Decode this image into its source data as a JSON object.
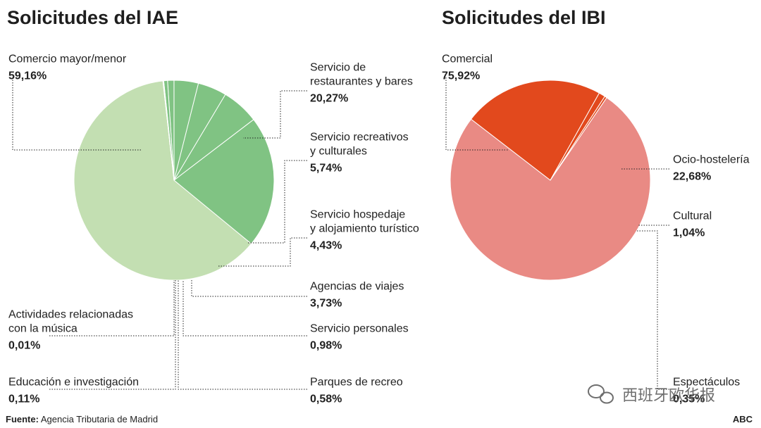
{
  "chart_data": [
    {
      "type": "pie",
      "title": "Solicitudes del IAE",
      "unit": "%",
      "categories": [
        "Comercio mayor/menor",
        "Servicio de restaurantes y bares",
        "Servicio recreativos y culturales",
        "Servicio hospedaje y alojamiento turístico",
        "Agencias de viajes",
        "Servicio personales",
        "Parques de recreo",
        "Educación e investigación",
        "Actividades relacionadas con la música"
      ],
      "values": [
        59.16,
        20.27,
        5.74,
        4.43,
        3.73,
        0.98,
        0.58,
        0.11,
        0.01
      ],
      "label_lines": [
        [
          "Comercio mayor/menor"
        ],
        [
          "Servicio de",
          "restaurantes y bares"
        ],
        [
          "Servicio recreativos",
          "y culturales"
        ],
        [
          "Servicio hospedaje",
          "y alojamiento turístico"
        ],
        [
          "Agencias de viajes"
        ],
        [
          "Servicio personales"
        ],
        [
          "Parques de recreo"
        ],
        [
          "Educación e investigación"
        ],
        [
          "Actividades relacionadas",
          "con la música"
        ]
      ],
      "value_labels": [
        "59,16%",
        "20,27%",
        "5,74%",
        "4,43%",
        "3,73%",
        "0,98%",
        "0,58%",
        "0,11%",
        "0,01%"
      ],
      "colors": [
        "#c3dfb2",
        "#80c383",
        "#80c383",
        "#80c383",
        "#80c383",
        "#80c383",
        "#80c383",
        "#80c383",
        "#80c383"
      ]
    },
    {
      "type": "pie",
      "title": "Solicitudes del IBI",
      "unit": "%",
      "categories": [
        "Comercial",
        "Ocio-hostelería",
        "Cultural",
        "Espectáculos"
      ],
      "values": [
        75.92,
        22.68,
        1.04,
        0.35
      ],
      "label_lines": [
        [
          "Comercial"
        ],
        [
          "Ocio-hostelería"
        ],
        [
          "Cultural"
        ],
        [
          "Espectáculos"
        ]
      ],
      "value_labels": [
        "75,92%",
        "22,68%",
        "1,04%",
        "0,35%"
      ],
      "colors": [
        "#e98a84",
        "#e2491d",
        "#e2491d",
        "#e2491d"
      ]
    }
  ],
  "footer": {
    "source_label": "Fuente:",
    "source_text": " Agencia Tributaria de Madrid",
    "brand": "ABC"
  },
  "watermark": {
    "text": "西班牙欧华报",
    "icon": "wechat-icon"
  }
}
